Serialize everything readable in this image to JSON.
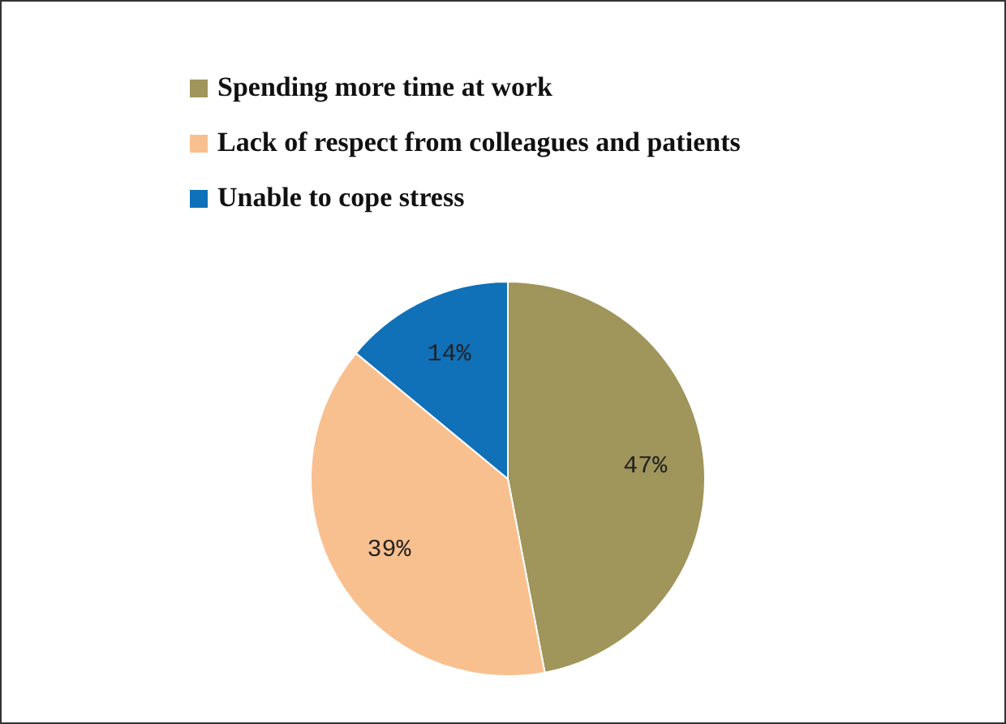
{
  "chart_data": {
    "type": "pie",
    "categories": [
      "Spending more time at work",
      "Lack of respect from colleagues and patients",
      "Unable to cope stress"
    ],
    "values": [
      47,
      39,
      14
    ],
    "colors": [
      "#a0955a",
      "#f9c08f",
      "#1070b8"
    ],
    "value_labels": [
      "47%",
      "39%",
      "14%"
    ],
    "legend": "top"
  }
}
